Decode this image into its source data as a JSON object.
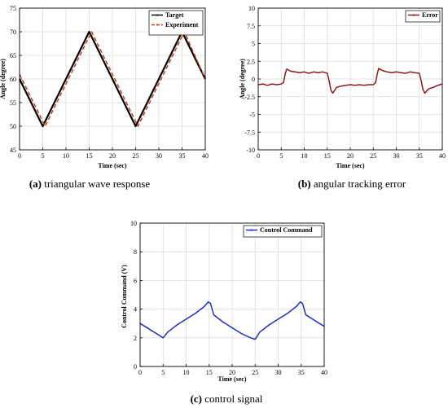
{
  "chart_data": [
    {
      "type": "line",
      "panel": "a",
      "caption_letter": "(a)",
      "caption_text": " triangular wave response",
      "xlabel": "Time (sec)",
      "ylabel": "Angle (degree)",
      "xlim": [
        0,
        40
      ],
      "ylim": [
        45,
        75
      ],
      "xticks": [
        0,
        5,
        10,
        15,
        20,
        25,
        30,
        35,
        40
      ],
      "yticks": [
        45,
        50,
        55,
        60,
        65,
        70,
        75
      ],
      "grid": true,
      "legend_position": "top-right",
      "series": [
        {
          "name": "Target",
          "color": "#000000",
          "style": "solid",
          "x": [
            0,
            5,
            15,
            25,
            35,
            40
          ],
          "y": [
            60,
            50,
            70,
            50,
            70,
            60
          ]
        },
        {
          "name": "Experiment",
          "color": "#c0392b",
          "style": "dashed",
          "x": [
            0,
            5.5,
            15.5,
            25.5,
            35.5,
            40
          ],
          "y": [
            61,
            50,
            70,
            50,
            70,
            60
          ]
        }
      ]
    },
    {
      "type": "line",
      "panel": "b",
      "caption_letter": "(b)",
      "caption_text": " angular tracking error",
      "xlabel": "Time (sec)",
      "ylabel": "Angle (degree)",
      "xlim": [
        0,
        40
      ],
      "ylim": [
        -10,
        10
      ],
      "xticks": [
        0,
        5,
        10,
        15,
        20,
        25,
        30,
        35,
        40
      ],
      "yticks": [
        -10,
        -7.5,
        -5,
        -2.5,
        0,
        2.5,
        5,
        7.5,
        10
      ],
      "ytick_labels": [
        "-10",
        "-7.5",
        "-5",
        "-2.5",
        "0",
        "2.5",
        "5",
        "7.5",
        "10"
      ],
      "grid": true,
      "legend_position": "top-right",
      "series": [
        {
          "name": "Error",
          "color": "#8b1a1a",
          "style": "solid",
          "x": [
            0,
            1,
            2,
            3,
            4,
            5,
            5.5,
            5.9,
            6.2,
            7,
            8,
            9,
            10,
            11,
            12,
            13,
            14,
            15,
            15.4,
            15.8,
            16.2,
            17,
            18,
            19,
            20,
            21,
            22,
            23,
            24,
            25,
            25.5,
            25.9,
            26.2,
            27,
            28,
            29,
            30,
            31,
            32,
            33,
            34,
            35,
            35.4,
            35.8,
            36.2,
            37,
            38,
            39,
            40
          ],
          "y": [
            -0.8,
            -0.7,
            -0.9,
            -0.7,
            -0.8,
            -0.7,
            -0.5,
            0.8,
            1.4,
            1.1,
            1.0,
            0.9,
            1.0,
            0.8,
            1.0,
            0.9,
            1.0,
            0.8,
            -0.2,
            -1.6,
            -2.0,
            -1.2,
            -1.0,
            -0.9,
            -0.8,
            -0.9,
            -0.8,
            -0.9,
            -0.8,
            -0.8,
            -0.5,
            0.8,
            1.5,
            1.2,
            1.0,
            0.9,
            1.0,
            0.9,
            0.8,
            1.0,
            0.9,
            0.8,
            -0.2,
            -1.5,
            -2.0,
            -1.4,
            -1.2,
            -0.9,
            -0.7
          ]
        }
      ]
    },
    {
      "type": "line",
      "panel": "c",
      "caption_letter": "(c)",
      "caption_text": " control signal",
      "xlabel": "Time (sec)",
      "ylabel": "Control Command (V)",
      "xlim": [
        0,
        40
      ],
      "ylim": [
        0,
        10
      ],
      "xticks": [
        0,
        5,
        10,
        15,
        20,
        25,
        30,
        35,
        40
      ],
      "yticks": [
        0,
        2,
        4,
        6,
        8,
        10
      ],
      "grid": true,
      "legend_position": "top-right",
      "series": [
        {
          "name": "Control Command",
          "color": "#1f2fbf",
          "style": "solid",
          "x": [
            0,
            2,
            4,
            5,
            6,
            8,
            10,
            12,
            14,
            14.8,
            15.3,
            16,
            18,
            20,
            22,
            24,
            25,
            26,
            28,
            30,
            32,
            34,
            34.8,
            35.3,
            36,
            38,
            40
          ],
          "y": [
            3.0,
            2.6,
            2.2,
            2.0,
            2.4,
            2.9,
            3.3,
            3.7,
            4.2,
            4.5,
            4.4,
            3.6,
            3.1,
            2.7,
            2.3,
            2.0,
            1.9,
            2.4,
            2.9,
            3.3,
            3.7,
            4.2,
            4.5,
            4.4,
            3.6,
            3.2,
            2.8
          ]
        }
      ]
    }
  ]
}
